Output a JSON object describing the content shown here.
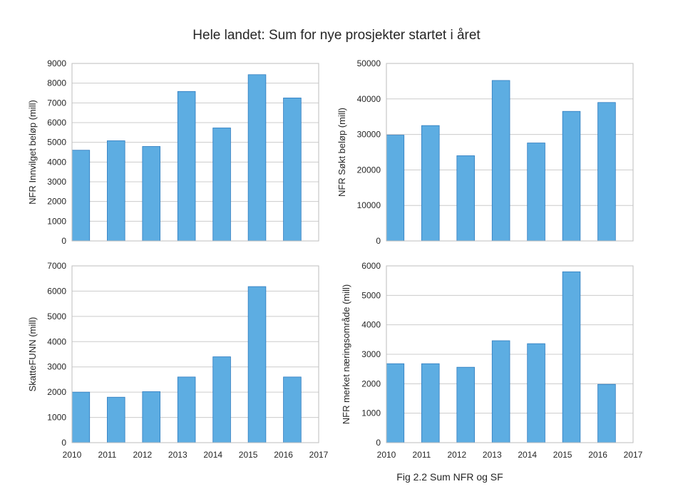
{
  "title": "Hele landet: Sum for nye prosjekter startet i året",
  "caption": "Fig 2.2 Sum NFR og SF",
  "bar_color": "#5dade2",
  "chart_data": [
    {
      "type": "bar",
      "ylabel": "NFR Innvilget beløp (mill)",
      "x": [
        2010,
        2011,
        2012,
        2013,
        2014,
        2015,
        2016
      ],
      "values": [
        4600,
        5080,
        4790,
        7580,
        5730,
        8430,
        7250
      ],
      "ylim": [
        0,
        9000
      ],
      "yticks": [
        0,
        1000,
        2000,
        3000,
        4000,
        5000,
        6000,
        7000,
        8000,
        9000
      ],
      "xlim": [
        2010,
        2017
      ],
      "xticks": [],
      "grid": true
    },
    {
      "type": "bar",
      "ylabel": "NFR Søkt beløp (mill)",
      "x": [
        2010,
        2011,
        2012,
        2013,
        2014,
        2015,
        2016
      ],
      "values": [
        29800,
        32500,
        24000,
        45200,
        27600,
        36500,
        39000
      ],
      "ylim": [
        0,
        50000
      ],
      "yticks": [
        0,
        10000,
        20000,
        30000,
        40000,
        50000
      ],
      "xlim": [
        2010,
        2017
      ],
      "xticks": [],
      "grid": true
    },
    {
      "type": "bar",
      "ylabel": "SkatteFUNN (mill)",
      "x": [
        2010,
        2011,
        2012,
        2013,
        2014,
        2015,
        2016
      ],
      "values": [
        2000,
        1800,
        2020,
        2600,
        3400,
        6180,
        2600
      ],
      "ylim": [
        0,
        7000
      ],
      "yticks": [
        0,
        1000,
        2000,
        3000,
        4000,
        5000,
        6000,
        7000
      ],
      "xlim": [
        2010,
        2017
      ],
      "xticks": [
        2010,
        2011,
        2012,
        2013,
        2014,
        2015,
        2016,
        2017
      ],
      "grid": true
    },
    {
      "type": "bar",
      "ylabel": "NFR merket næringsområde (mill)",
      "x": [
        2010,
        2011,
        2012,
        2013,
        2014,
        2015,
        2016
      ],
      "values": [
        2680,
        2680,
        2560,
        3460,
        3360,
        5800,
        1980
      ],
      "ylim": [
        0,
        6000
      ],
      "yticks": [
        0,
        1000,
        2000,
        3000,
        4000,
        5000,
        6000
      ],
      "xlim": [
        2010,
        2017
      ],
      "xticks": [
        2010,
        2011,
        2012,
        2013,
        2014,
        2015,
        2016,
        2017
      ],
      "grid": true
    }
  ]
}
